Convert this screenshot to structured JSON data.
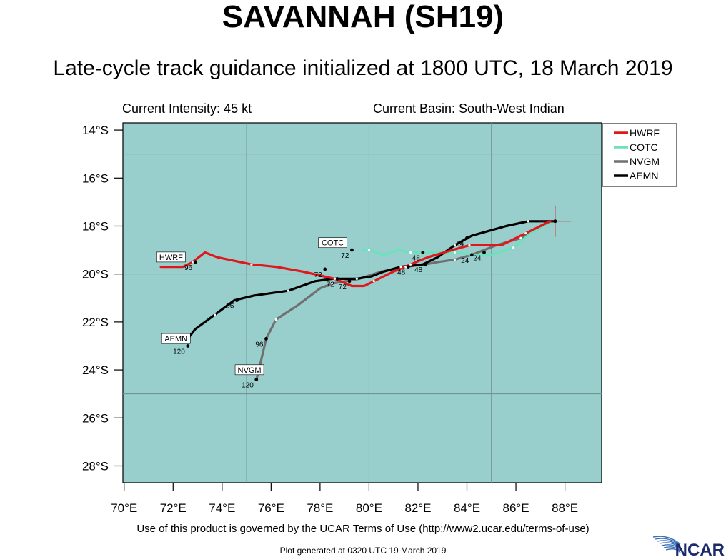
{
  "title": "SAVANNAH (SH19)",
  "subtitle": "Late-cycle track guidance initialized at 1800 UTC, 18 March 2019",
  "current_intensity": "Current Intensity: 45 kt",
  "current_basin": "Current Basin: South-West Indian",
  "terms": "Use of this product is governed by the UCAR Terms of Use (http://www2.ucar.edu/terms-of-use)",
  "generated": "Plot generated at 0320 UTC  19 March 2019",
  "logo_text": "NCAR",
  "colors": {
    "ocean": "#98cfcd",
    "HWRF": "#e0181b",
    "COTC": "#6de0bc",
    "NVGM": "#707070",
    "AEMN": "#000000",
    "center_marker": "#e0181b"
  },
  "axes": {
    "lon_ticks": [
      "70°E",
      "72°E",
      "74°E",
      "76°E",
      "78°E",
      "80°E",
      "82°E",
      "84°E",
      "86°E",
      "88°E"
    ],
    "lon_tick_values": [
      70,
      72,
      74,
      76,
      78,
      80,
      82,
      84,
      86,
      88
    ],
    "lat_ticks": [
      "14°S",
      "16°S",
      "18°S",
      "20°S",
      "22°S",
      "24°S",
      "26°S",
      "28°S"
    ],
    "lat_tick_values": [
      -14,
      -16,
      -18,
      -20,
      -22,
      -24,
      -26,
      -28
    ],
    "lon_range": [
      69.95,
      89.5
    ],
    "lat_range": [
      -28.7,
      -13.7
    ],
    "grid_lons": [
      75,
      80,
      85
    ],
    "grid_lats": [
      -15,
      -20,
      -25
    ]
  },
  "legend": {
    "position": "top-right",
    "items": [
      {
        "name": "HWRF",
        "color": "#e0181b"
      },
      {
        "name": "COTC",
        "color": "#6de0bc"
      },
      {
        "name": "NVGM",
        "color": "#707070"
      },
      {
        "name": "AEMN",
        "color": "#000000"
      }
    ]
  },
  "current_position": {
    "lon": 87.6,
    "lat": -17.8
  },
  "tracks": [
    {
      "model": "HWRF",
      "color": "#e0181b",
      "points": [
        [
          87.4,
          -17.8
        ],
        [
          87.2,
          -17.9
        ],
        [
          86.4,
          -18.3
        ],
        [
          85.4,
          -18.8
        ],
        [
          84.8,
          -18.8
        ],
        [
          84.1,
          -18.8
        ],
        [
          83.4,
          -19.0
        ],
        [
          82.4,
          -19.3
        ],
        [
          81.7,
          -19.6
        ],
        [
          81.0,
          -19.9
        ],
        [
          80.6,
          -20.1
        ],
        [
          80.2,
          -20.3
        ],
        [
          79.8,
          -20.5
        ],
        [
          79.3,
          -20.5
        ],
        [
          78.6,
          -20.2
        ],
        [
          77.3,
          -19.9
        ],
        [
          76.2,
          -19.7
        ],
        [
          75.2,
          -19.6
        ],
        [
          73.8,
          -19.3
        ],
        [
          73.3,
          -19.1
        ],
        [
          72.8,
          -19.5
        ],
        [
          72.4,
          -19.7
        ],
        [
          71.5,
          -19.7
        ]
      ],
      "markers": [
        {
          "lon": 82.2,
          "lat": -19.1,
          "label": "48"
        },
        {
          "lon": 78.2,
          "lat": -19.8,
          "label": "72"
        },
        {
          "lon": 72.9,
          "lat": -19.5,
          "label": "96"
        }
      ],
      "tag": {
        "lon": 72.5,
        "lat": -19.5,
        "text": "HWRF"
      }
    },
    {
      "model": "COTC",
      "color": "#6de0bc",
      "points": [
        [
          87.3,
          -17.9
        ],
        [
          86.6,
          -18.3
        ],
        [
          85.9,
          -18.9
        ],
        [
          85.0,
          -19.2
        ],
        [
          84.3,
          -19.2
        ],
        [
          83.5,
          -19.1
        ],
        [
          82.8,
          -19.1
        ],
        [
          82.0,
          -19.1
        ],
        [
          81.7,
          -19.1
        ],
        [
          81.2,
          -19.0
        ],
        [
          80.6,
          -19.2
        ],
        [
          80.0,
          -19.0
        ],
        [
          79.7,
          -19.0
        ]
      ],
      "markers": [
        {
          "lon": 84.7,
          "lat": -19.1,
          "label": "24"
        },
        {
          "lon": 79.3,
          "lat": -19.0,
          "label": "72"
        }
      ],
      "tag": {
        "lon": 79.1,
        "lat": -18.9,
        "text": "COTC"
      }
    },
    {
      "model": "NVGM",
      "color": "#707070",
      "points": [
        [
          87.4,
          -17.8
        ],
        [
          87.0,
          -18.0
        ],
        [
          86.2,
          -18.5
        ],
        [
          85.2,
          -18.8
        ],
        [
          84.2,
          -19.2
        ],
        [
          83.5,
          -19.4
        ],
        [
          82.8,
          -19.5
        ],
        [
          82.3,
          -19.6
        ],
        [
          81.5,
          -19.7
        ],
        [
          80.5,
          -19.9
        ],
        [
          79.6,
          -20.2
        ],
        [
          78.5,
          -20.4
        ],
        [
          78.0,
          -20.6
        ],
        [
          77.1,
          -21.3
        ],
        [
          76.2,
          -21.9
        ],
        [
          75.8,
          -22.7
        ],
        [
          75.5,
          -24.0
        ],
        [
          75.4,
          -24.4
        ]
      ],
      "markers": [
        {
          "lon": 84.2,
          "lat": -19.2,
          "label": "24"
        },
        {
          "lon": 82.3,
          "lat": -19.6,
          "label": "48"
        },
        {
          "lon": 79.2,
          "lat": -20.3,
          "label": "72"
        },
        {
          "lon": 75.8,
          "lat": -22.7,
          "label": "96"
        },
        {
          "lon": 75.4,
          "lat": -24.4,
          "label": "120"
        }
      ],
      "tag": {
        "lon": 75.7,
        "lat": -24.2,
        "text": "NVGM"
      }
    },
    {
      "model": "AEMN",
      "color": "#000000",
      "points": [
        [
          87.6,
          -17.8
        ],
        [
          87.0,
          -17.8
        ],
        [
          86.5,
          -17.8
        ],
        [
          85.6,
          -18.0
        ],
        [
          84.2,
          -18.4
        ],
        [
          83.5,
          -18.8
        ],
        [
          82.8,
          -19.3
        ],
        [
          82.2,
          -19.6
        ],
        [
          81.3,
          -19.7
        ],
        [
          80.6,
          -19.9
        ],
        [
          80.1,
          -20.1
        ],
        [
          79.5,
          -20.2
        ],
        [
          78.5,
          -20.2
        ],
        [
          77.8,
          -20.3
        ],
        [
          76.7,
          -20.7
        ],
        [
          75.3,
          -20.9
        ],
        [
          74.5,
          -21.1
        ],
        [
          73.7,
          -21.7
        ],
        [
          72.9,
          -22.3
        ],
        [
          72.6,
          -22.7
        ]
      ],
      "markers": [
        {
          "lon": 84.0,
          "lat": -18.5,
          "label": "24"
        },
        {
          "lon": 81.6,
          "lat": -19.7,
          "label": "48"
        },
        {
          "lon": 78.7,
          "lat": -20.2,
          "label": "72"
        },
        {
          "lon": 74.6,
          "lat": -21.1,
          "label": "96"
        },
        {
          "lon": 72.6,
          "lat": -23.0,
          "label": "120"
        }
      ],
      "tag": {
        "lon": 72.7,
        "lat": -22.9,
        "text": "AEMN"
      }
    }
  ]
}
